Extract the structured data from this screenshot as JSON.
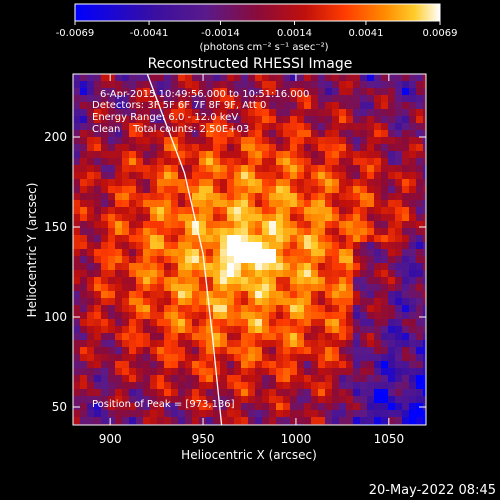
{
  "chart_data": {
    "type": "heatmap",
    "title": "Reconstructed RHESSI Image",
    "xlabel": "Heliocentric X (arcsec)",
    "ylabel": "Heliocentric Y (arcsec)",
    "xlim": [
      880,
      1070
    ],
    "ylim": [
      40,
      235
    ],
    "x_ticks": [
      900,
      950,
      1000,
      1050
    ],
    "y_ticks": [
      50,
      100,
      150,
      200
    ],
    "colorbar": {
      "range": [
        -0.0069,
        0.0069
      ],
      "tick_values": [
        -0.0069,
        -0.0041,
        -0.0014,
        0.0014,
        0.0041,
        0.0069
      ],
      "tick_labels": [
        "-0.0069",
        "-0.0041",
        "-0.0014",
        "0.0014",
        "0.0041",
        "0.0069"
      ],
      "units_label": "(photons cm⁻² s⁻¹ asec⁻²)"
    },
    "annotations": {
      "time_range": "6-Apr-2015 10:49:56.000 to 10:51:16.000",
      "detectors": "Detectors: 3F 5F 6F 7F 8F 9F, Att 0",
      "energy_range": "Energy Range: 6.0 - 12.0 keV",
      "clean_counts": "Clean    Total counts: 2.50E+03",
      "peak": "Position of Peak = [973,136]"
    },
    "peak_position": [
      973,
      136
    ],
    "limb_curve": [
      [
        920,
        235
      ],
      [
        940,
        180
      ],
      [
        950,
        135
      ],
      [
        955,
        90
      ],
      [
        960,
        40
      ]
    ],
    "footer_date": "20-May-2022 08:45",
    "colors": {
      "background": "#000000",
      "foreground": "#ffffff",
      "colormap": [
        "#0000ff",
        "#3a0fa0",
        "#5a1a8a",
        "#8a0b3a",
        "#c0100c",
        "#ff3c00",
        "#ff8c00",
        "#ffcc2a",
        "#ffffff"
      ]
    }
  }
}
